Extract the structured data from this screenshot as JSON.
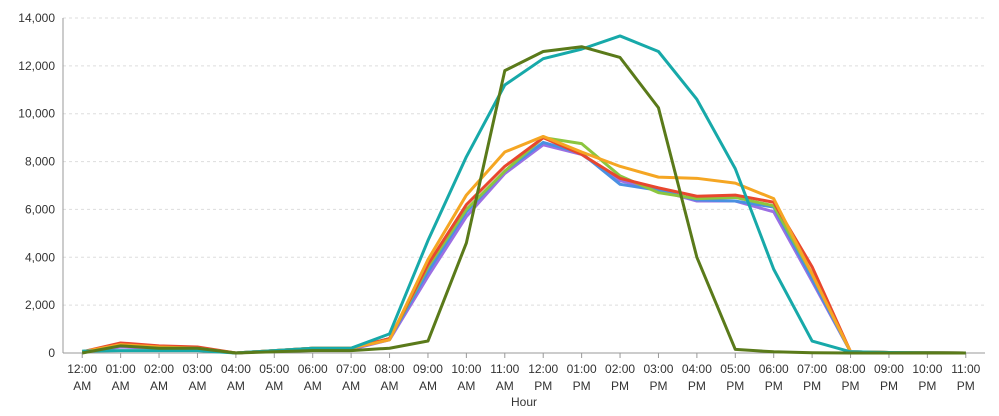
{
  "chart_data": {
    "type": "line",
    "x_label": "Hour",
    "categories": [
      "12:00 AM",
      "01:00 AM",
      "02:00 AM",
      "03:00 AM",
      "04:00 AM",
      "05:00 AM",
      "06:00 AM",
      "07:00 AM",
      "08:00 AM",
      "09:00 AM",
      "10:00 AM",
      "11:00 AM",
      "12:00 PM",
      "01:00 PM",
      "02:00 PM",
      "03:00 PM",
      "04:00 PM",
      "05:00 PM",
      "06:00 PM",
      "07:00 PM",
      "08:00 PM",
      "09:00 PM",
      "10:00 PM",
      "11:00 PM"
    ],
    "series": [
      {
        "color": "#9b6fe3",
        "values": [
          30,
          250,
          200,
          150,
          0,
          80,
          150,
          150,
          550,
          3200,
          5700,
          7500,
          8700,
          8300,
          7200,
          6800,
          6350,
          6350,
          5900,
          3000,
          50,
          20,
          10,
          0
        ]
      },
      {
        "color": "#4a90e2",
        "values": [
          50,
          300,
          250,
          200,
          0,
          100,
          200,
          200,
          600,
          3400,
          5900,
          7600,
          8800,
          8350,
          7050,
          6800,
          6400,
          6350,
          6100,
          3100,
          50,
          20,
          10,
          0
        ]
      },
      {
        "color": "#8cc63f",
        "values": [
          50,
          350,
          250,
          200,
          0,
          100,
          200,
          200,
          600,
          3600,
          6000,
          7600,
          9000,
          8750,
          7400,
          6700,
          6450,
          6500,
          6150,
          3300,
          50,
          20,
          10,
          0
        ]
      },
      {
        "color": "#e8472e",
        "values": [
          50,
          420,
          300,
          250,
          0,
          100,
          200,
          200,
          600,
          3700,
          6200,
          7800,
          9000,
          8300,
          7300,
          6900,
          6550,
          6600,
          6300,
          3600,
          50,
          20,
          10,
          0
        ]
      },
      {
        "color": "#f5a623",
        "values": [
          50,
          350,
          250,
          200,
          0,
          100,
          200,
          200,
          550,
          3900,
          6600,
          8400,
          9050,
          8400,
          7800,
          7350,
          7300,
          7100,
          6450,
          3300,
          50,
          20,
          10,
          0
        ]
      },
      {
        "color": "#17a9a9",
        "values": [
          80,
          100,
          100,
          100,
          0,
          100,
          200,
          200,
          800,
          4700,
          8200,
          11200,
          12300,
          12700,
          13250,
          12600,
          10600,
          7700,
          3500,
          500,
          50,
          20,
          10,
          0
        ]
      },
      {
        "color": "#5a7a1a",
        "values": [
          0,
          300,
          200,
          200,
          0,
          50,
          100,
          100,
          200,
          500,
          4600,
          11800,
          12600,
          12800,
          12350,
          10250,
          4000,
          150,
          50,
          10,
          0,
          0,
          0,
          0
        ]
      }
    ],
    "ylim": [
      0,
      14000
    ],
    "yticks": [
      0,
      {
        "value": 2000,
        "label": "2,000"
      },
      {
        "value": 4000,
        "label": "4,000"
      },
      {
        "value": 6000,
        "label": "6,000"
      },
      {
        "value": 8000,
        "label": "8,000"
      },
      {
        "value": 10000,
        "label": "10,000"
      },
      {
        "value": 12000,
        "label": "12,000"
      },
      {
        "value": 14000,
        "label": "14,000"
      }
    ],
    "grid": true
  }
}
